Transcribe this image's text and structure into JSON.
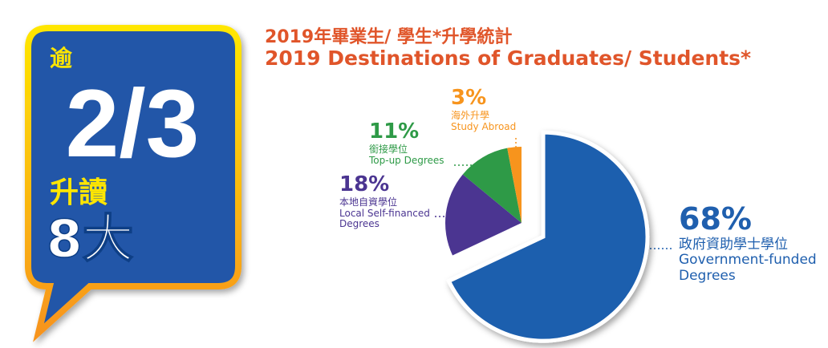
{
  "callout": {
    "prefix": "逾",
    "fraction": "2/3",
    "verb": "升讀",
    "object": "8大"
  },
  "chart_data": {
    "type": "pie",
    "title": "2019年畢業生/ 學生*升學統計",
    "subtitle": "2019 Destinations of Graduates/ Students*",
    "categories": [
      "Government-funded Degrees",
      "Local Self-financed Degrees",
      "Top-up Degrees",
      "Study Abroad"
    ],
    "categories_zh": [
      "政府資助學士學位",
      "本地自資學位",
      "銜接學位",
      "海外升學"
    ],
    "values": [
      68,
      18,
      11,
      3
    ],
    "value_labels": [
      "68%",
      "18%",
      "11%",
      "3%"
    ],
    "colors": [
      "#1f5fae",
      "#4b3591",
      "#2e9a47",
      "#f7941d"
    ]
  }
}
